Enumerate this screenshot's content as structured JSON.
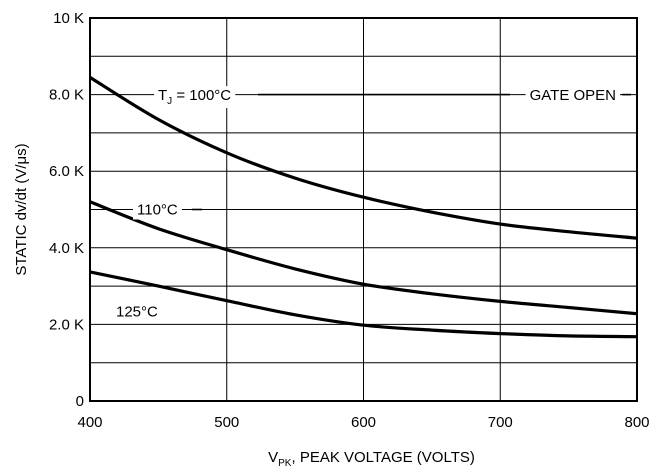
{
  "chart_data": {
    "type": "line",
    "xlabel_main": "V",
    "xlabel_sub": "PK",
    "xlabel_rest": ", PEAK VOLTAGE (VOLTS)",
    "ylabel": "STATIC dv/dt (V/μs)",
    "xlim": [
      400,
      800
    ],
    "ylim": [
      0,
      10000
    ],
    "x_ticks": [
      400,
      500,
      600,
      700,
      800
    ],
    "x_tick_labels": [
      "400",
      "500",
      "600",
      "700",
      "800"
    ],
    "y_ticks": [
      0,
      2000,
      4000,
      6000,
      8000,
      10000
    ],
    "y_tick_labels": [
      "0",
      "2.0 K",
      "4.0 K",
      "6.0 K",
      "8.0 K",
      "10 K"
    ],
    "grid": true,
    "x_grid_step": 100,
    "y_grid_step": 1000,
    "series": [
      {
        "name": "TJ = 100°C",
        "x": [
          400,
          450,
          500,
          550,
          600,
          650,
          700,
          750,
          800
        ],
        "y": [
          8450,
          7350,
          6480,
          5820,
          5320,
          4930,
          4620,
          4420,
          4250
        ]
      },
      {
        "name": "110°C",
        "x": [
          400,
          450,
          500,
          550,
          600,
          650,
          700,
          750,
          800
        ],
        "y": [
          5200,
          4500,
          3950,
          3450,
          3050,
          2800,
          2600,
          2440,
          2280
        ]
      },
      {
        "name": "125°C",
        "x": [
          400,
          450,
          500,
          550,
          600,
          650,
          700,
          750,
          800
        ],
        "y": [
          3370,
          3000,
          2620,
          2250,
          1980,
          1850,
          1760,
          1700,
          1680
        ]
      }
    ],
    "annotations": {
      "tj_main": "T",
      "tj_sub": "J",
      "tj_rest": " = 100°C",
      "label_110": "110°C",
      "label_125": "125°C",
      "gate_open": "GATE OPEN"
    }
  }
}
